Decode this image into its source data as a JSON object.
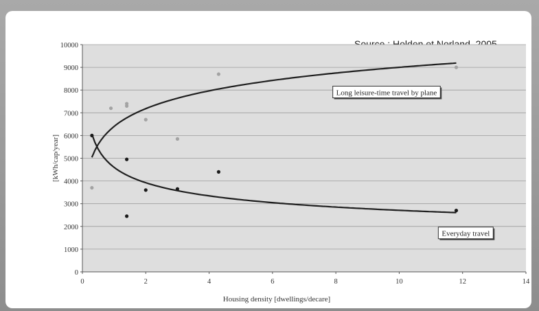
{
  "source_text": "Source : Holden et Norland, 2005",
  "chart_data": {
    "type": "scatter",
    "xlabel": "Housing density [dwellings/decare]",
    "ylabel": "[kWh/cap/year]",
    "xlim": [
      0,
      14
    ],
    "ylim": [
      0,
      10000
    ],
    "x_ticks": [
      0,
      2,
      4,
      6,
      8,
      10,
      12,
      14
    ],
    "y_ticks": [
      0,
      1000,
      2000,
      3000,
      4000,
      5000,
      6000,
      7000,
      8000,
      9000,
      10000
    ],
    "grid": "horizontal",
    "series": [
      {
        "name": "Long leisure-time travel by plane",
        "marker_color": "#a3a3a3",
        "points": [
          {
            "x": 0.3,
            "y": 3700
          },
          {
            "x": 0.9,
            "y": 7200
          },
          {
            "x": 1.4,
            "y": 7300
          },
          {
            "x": 1.4,
            "y": 7400
          },
          {
            "x": 2.0,
            "y": 6700
          },
          {
            "x": 3.0,
            "y": 5850
          },
          {
            "x": 4.3,
            "y": 8700
          },
          {
            "x": 11.8,
            "y": 9000
          }
        ],
        "trend": {
          "kind": "log",
          "a": 6400,
          "b": 1130,
          "x_start": 0.3,
          "x_end": 11.8
        }
      },
      {
        "name": "Everyday travel",
        "marker_color": "#1a1a1a",
        "points": [
          {
            "x": 0.3,
            "y": 6000
          },
          {
            "x": 1.4,
            "y": 4950
          },
          {
            "x": 1.4,
            "y": 2450
          },
          {
            "x": 2.0,
            "y": 3600
          },
          {
            "x": 3.0,
            "y": 3650
          },
          {
            "x": 4.3,
            "y": 4400
          },
          {
            "x": 11.8,
            "y": 2700
          }
        ],
        "trend": {
          "kind": "power",
          "a": 4600,
          "b": -0.23,
          "x_start": 0.3,
          "x_end": 11.8
        }
      }
    ],
    "annotations": [
      {
        "text": "Long leisure-time travel by plane",
        "anchor_x": 9.6,
        "anchor_y": 7900
      },
      {
        "text": "Everyday travel",
        "anchor_x": 12.1,
        "anchor_y": 1700
      }
    ]
  }
}
